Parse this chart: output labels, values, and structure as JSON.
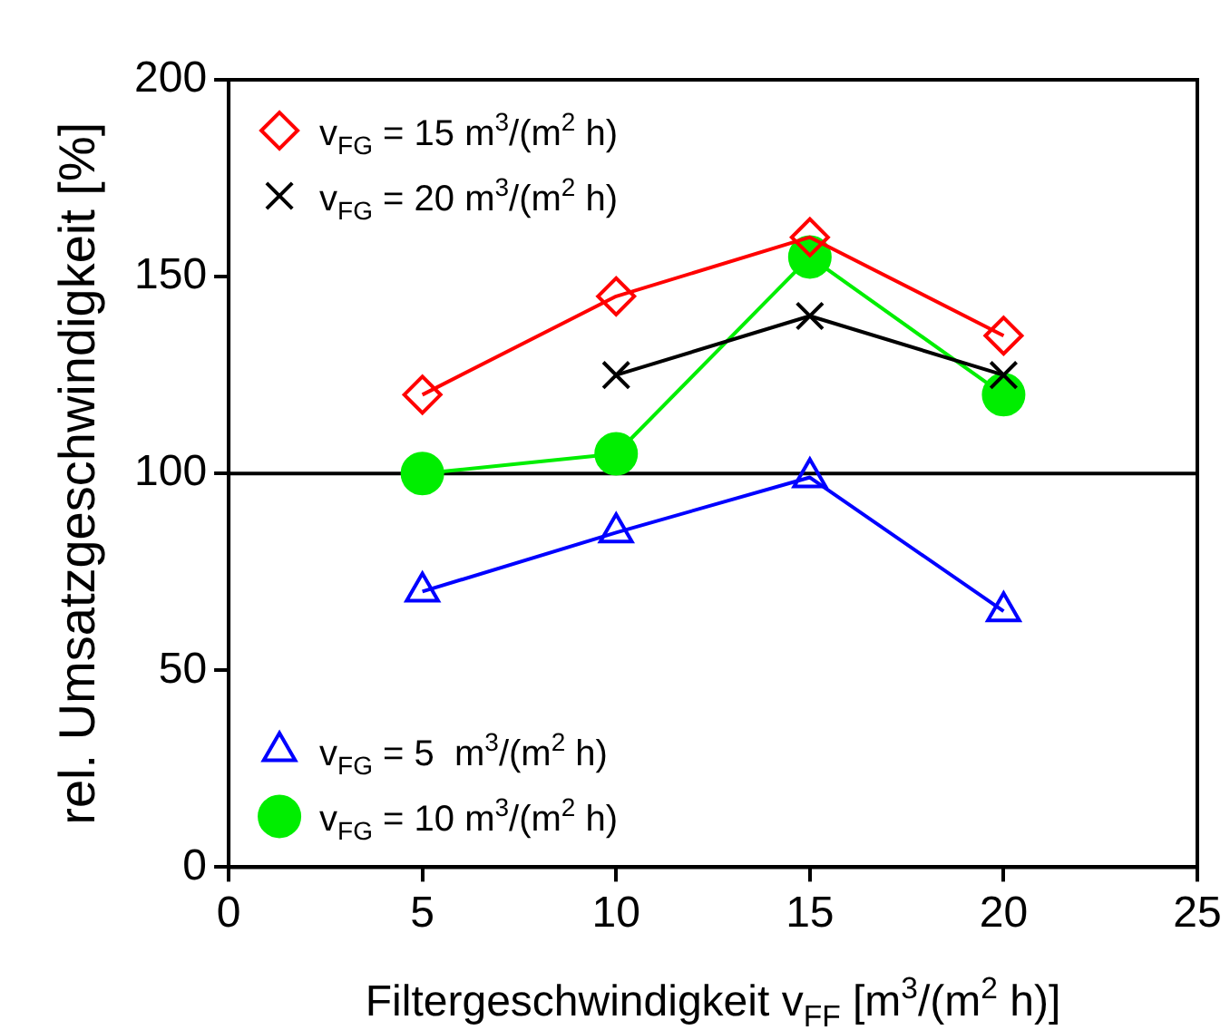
{
  "chart_data": {
    "type": "line",
    "xlabel": "Filtergeschwindigkeit v$_{FF}$ [m$^{3}$/(m$^{2}$ h)]",
    "ylabel": "rel. Umsatzgeschwindigkeit [%]",
    "xlim": [
      0,
      25
    ],
    "xticks": [
      0,
      5,
      10,
      15,
      20,
      25
    ],
    "ylim": [
      0,
      200
    ],
    "yticks": [
      0,
      50,
      100,
      150,
      200
    ],
    "grid": false,
    "legend": "left",
    "line_style": "solid",
    "ref_lines": [
      {
        "axis": "y",
        "value": 100,
        "color": "#000000"
      }
    ],
    "series": [
      {
        "name": "v$_{FG}$ = 15 m$^{3}$/(m$^{2}$ h)",
        "color": "#ff0000",
        "marker": "diamond",
        "x": [
          5,
          10,
          15,
          20
        ],
        "values": [
          120,
          145,
          160,
          135
        ]
      },
      {
        "name": "v$_{FG}$ = 20 m$^{3}$/(m$^{2}$ h)",
        "color": "#000000",
        "marker": "cross",
        "x": [
          10,
          15,
          20
        ],
        "values": [
          125,
          140,
          125
        ]
      },
      {
        "name": "v$_{FG}$ = 5  m$^{3}$/(m$^{2}$ h)",
        "color": "#0000ff",
        "marker": "triangle",
        "x": [
          5,
          10,
          15,
          20
        ],
        "values": [
          70,
          85,
          99,
          65
        ]
      },
      {
        "name": "v$_{FG}$ = 10 m$^{3}$/(m$^{2}$ h)",
        "color": "#00ee00",
        "marker": "circle",
        "x": [
          5,
          10,
          15,
          20
        ],
        "values": [
          100,
          105,
          155,
          120
        ]
      }
    ]
  }
}
